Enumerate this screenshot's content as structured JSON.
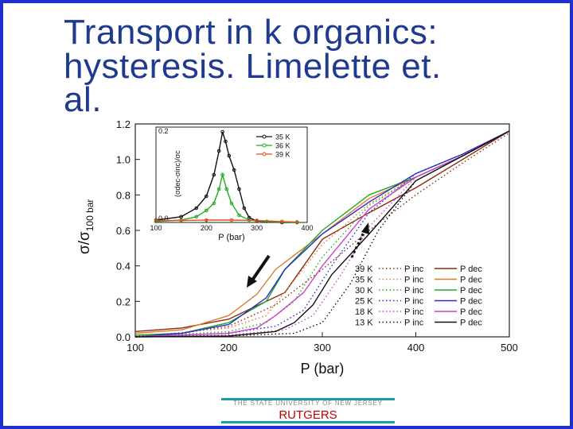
{
  "slide": {
    "title_lines": [
      "Transport in k organics:",
      "hysteresis. Limelette et.",
      "al."
    ],
    "footer": {
      "university": "THE STATE UNIVERSITY OF NEW JERSEY",
      "logo_text": "RUTGERS"
    },
    "colors": {
      "title": "#1f3a8f",
      "border": "#1f2fd0",
      "footer_line": "#1aa0a8",
      "logo": "#c00000"
    }
  },
  "chart_data": [
    {
      "type": "line",
      "title": "",
      "xlabel": "P (bar)",
      "ylabel_main": "σ/σ",
      "ylabel_sub": "100 bar",
      "xlim": [
        100,
        500
      ],
      "ylim": [
        0,
        1.2
      ],
      "xticks": [
        "100",
        "200",
        "300",
        "400",
        "500"
      ],
      "yticks": [
        "0.0",
        "0.2",
        "0.4",
        "0.6",
        "0.8",
        "1.0",
        "1.2"
      ],
      "legend_position": "bottom-right",
      "legend_inc_label": "P inc",
      "legend_dec_label": "P dec",
      "series": [
        {
          "name": "39 K",
          "color": "#8b2a10",
          "inc": [
            [
              100,
              0.005
            ],
            [
              150,
              0.02
            ],
            [
              200,
              0.06
            ],
            [
              250,
              0.18
            ],
            [
              300,
              0.38
            ],
            [
              350,
              0.6
            ],
            [
              400,
              0.8
            ],
            [
              450,
              0.98
            ],
            [
              500,
              1.15
            ]
          ],
          "dec": [
            [
              500,
              1.16
            ],
            [
              450,
              1.0
            ],
            [
              400,
              0.84
            ],
            [
              350,
              0.7
            ],
            [
              300,
              0.55
            ],
            [
              260,
              0.25
            ],
            [
              200,
              0.1
            ],
            [
              150,
              0.05
            ],
            [
              100,
              0.03
            ]
          ]
        },
        {
          "name": "35 K",
          "color": "#e07a30",
          "inc": [
            [
              100,
              0
            ],
            [
              200,
              0.05
            ],
            [
              240,
              0.12
            ],
            [
              270,
              0.32
            ],
            [
              300,
              0.52
            ],
            [
              350,
              0.75
            ],
            [
              400,
              0.9
            ],
            [
              450,
              1.02
            ],
            [
              500,
              1.16
            ]
          ],
          "dec": [
            [
              500,
              1.16
            ],
            [
              450,
              1.02
            ],
            [
              400,
              0.9
            ],
            [
              350,
              0.78
            ],
            [
              300,
              0.58
            ],
            [
              250,
              0.38
            ],
            [
              230,
              0.24
            ],
            [
              200,
              0.12
            ],
            [
              150,
              0.04
            ],
            [
              100,
              0.02
            ]
          ]
        },
        {
          "name": "30 K",
          "color": "#22aa22",
          "inc": [
            [
              100,
              0
            ],
            [
              200,
              0.03
            ],
            [
              240,
              0.08
            ],
            [
              270,
              0.2
            ],
            [
              300,
              0.45
            ],
            [
              350,
              0.74
            ],
            [
              400,
              0.9
            ],
            [
              450,
              1.02
            ],
            [
              500,
              1.16
            ]
          ],
          "dec": [
            [
              500,
              1.16
            ],
            [
              450,
              1.02
            ],
            [
              400,
              0.9
            ],
            [
              350,
              0.8
            ],
            [
              300,
              0.6
            ],
            [
              260,
              0.38
            ],
            [
              240,
              0.2
            ],
            [
              200,
              0.08
            ],
            [
              150,
              0.02
            ],
            [
              100,
              0.01
            ]
          ]
        },
        {
          "name": "25 K",
          "color": "#2a2ad0",
          "inc": [
            [
              100,
              0
            ],
            [
              200,
              0.02
            ],
            [
              250,
              0.06
            ],
            [
              280,
              0.15
            ],
            [
              310,
              0.4
            ],
            [
              350,
              0.7
            ],
            [
              400,
              0.92
            ],
            [
              450,
              1.03
            ],
            [
              500,
              1.16
            ]
          ],
          "dec": [
            [
              500,
              1.16
            ],
            [
              450,
              1.03
            ],
            [
              400,
              0.92
            ],
            [
              350,
              0.76
            ],
            [
              300,
              0.58
            ],
            [
              260,
              0.38
            ],
            [
              240,
              0.22
            ],
            [
              200,
              0.07
            ],
            [
              150,
              0.02
            ],
            [
              100,
              0
            ]
          ]
        },
        {
          "name": "18 K",
          "color": "#cc44cc",
          "inc": [
            [
              100,
              0
            ],
            [
              200,
              0.01
            ],
            [
              260,
              0.04
            ],
            [
              290,
              0.12
            ],
            [
              320,
              0.35
            ],
            [
              350,
              0.62
            ],
            [
              400,
              0.9
            ],
            [
              450,
              1.02
            ],
            [
              500,
              1.16
            ]
          ],
          "dec": [
            [
              500,
              1.16
            ],
            [
              450,
              1.02
            ],
            [
              400,
              0.9
            ],
            [
              350,
              0.72
            ],
            [
              300,
              0.4
            ],
            [
              280,
              0.25
            ],
            [
              250,
              0.12
            ],
            [
              230,
              0.05
            ],
            [
              200,
              0.02
            ],
            [
              100,
              0
            ]
          ]
        },
        {
          "name": "13 K",
          "color": "#111111",
          "inc": [
            [
              100,
              0
            ],
            [
              200,
              0.005
            ],
            [
              270,
              0.02
            ],
            [
              300,
              0.08
            ],
            [
              330,
              0.3
            ],
            [
              360,
              0.6
            ],
            [
              400,
              0.88
            ],
            [
              450,
              1.02
            ],
            [
              500,
              1.16
            ]
          ],
          "dec": [
            [
              500,
              1.16
            ],
            [
              450,
              1.02
            ],
            [
              400,
              0.88
            ],
            [
              350,
              0.58
            ],
            [
              310,
              0.35
            ],
            [
              290,
              0.18
            ],
            [
              270,
              0.08
            ],
            [
              250,
              0.03
            ],
            [
              200,
              0.005
            ],
            [
              100,
              0
            ]
          ]
        }
      ]
    },
    {
      "type": "line",
      "title": "",
      "xlabel": "P (bar)",
      "ylabel": "(σdec-σinc)/σc",
      "xlim": [
        100,
        400
      ],
      "ylim": [
        0,
        0.2
      ],
      "xticks": [
        "100",
        "200",
        "300",
        "400"
      ],
      "yticks": [
        "0.0",
        "0.2"
      ],
      "legend_position": "top-right",
      "series": [
        {
          "name": "35 K",
          "color": "#111111",
          "points": [
            [
              100,
              0.005
            ],
            [
              150,
              0.012
            ],
            [
              180,
              0.03
            ],
            [
              200,
              0.055
            ],
            [
              215,
              0.1
            ],
            [
              225,
              0.15
            ],
            [
              232,
              0.19
            ],
            [
              238,
              0.17
            ],
            [
              245,
              0.14
            ],
            [
              255,
              0.11
            ],
            [
              265,
              0.07
            ],
            [
              275,
              0.03
            ],
            [
              285,
              0.01
            ],
            [
              300,
              0.003
            ],
            [
              350,
              0
            ],
            [
              380,
              0
            ]
          ]
        },
        {
          "name": "36 K",
          "color": "#22aa22",
          "points": [
            [
              100,
              0.002
            ],
            [
              150,
              0.005
            ],
            [
              180,
              0.012
            ],
            [
              200,
              0.025
            ],
            [
              215,
              0.04
            ],
            [
              225,
              0.07
            ],
            [
              232,
              0.1
            ],
            [
              240,
              0.07
            ],
            [
              250,
              0.04
            ],
            [
              265,
              0.015
            ],
            [
              285,
              0.005
            ],
            [
              320,
              0.002
            ],
            [
              380,
              0
            ]
          ]
        },
        {
          "name": "39 K",
          "color": "#e05020",
          "points": [
            [
              100,
              0.004
            ],
            [
              150,
              0.004
            ],
            [
              200,
              0.005
            ],
            [
              250,
              0.005
            ],
            [
              300,
              0.004
            ],
            [
              350,
              0.002
            ],
            [
              380,
              0.001
            ]
          ]
        }
      ]
    }
  ]
}
